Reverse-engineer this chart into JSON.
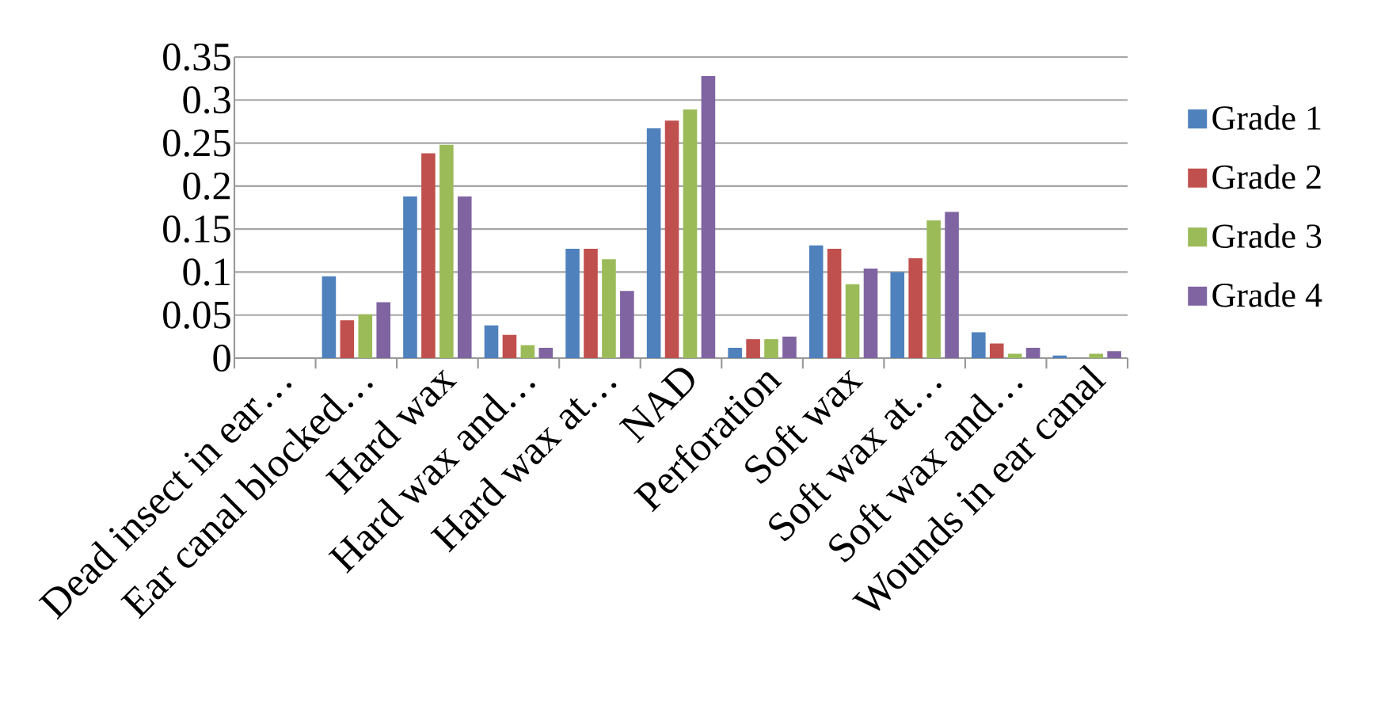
{
  "chart_data": {
    "type": "bar",
    "categories": [
      "Dead insect in ear…",
      "Ear canal blocked…",
      "Hard wax",
      "Hard wax and…",
      "Hard wax at…",
      "NAD",
      "Perforation",
      "Soft wax",
      "Soft wax at…",
      "Soft wax and…",
      "Wounds in ear canal"
    ],
    "series": [
      {
        "name": "Grade 1",
        "color": "#4f81bd",
        "values": [
          0,
          0.095,
          0.188,
          0.038,
          0.127,
          0.267,
          0.012,
          0.131,
          0.1,
          0.03,
          0.003
        ]
      },
      {
        "name": "Grade 2",
        "color": "#c0504d",
        "values": [
          0,
          0.044,
          0.238,
          0.027,
          0.127,
          0.276,
          0.022,
          0.127,
          0.116,
          0.017,
          0
        ]
      },
      {
        "name": "Grade 3",
        "color": "#9bbb59",
        "values": [
          0,
          0.051,
          0.248,
          0.015,
          0.115,
          0.289,
          0.022,
          0.086,
          0.16,
          0.005,
          0.005
        ]
      },
      {
        "name": "Grade 4",
        "color": "#8064a2",
        "values": [
          0,
          0.065,
          0.188,
          0.012,
          0.078,
          0.328,
          0.025,
          0.104,
          0.17,
          0.012,
          0.008
        ]
      }
    ],
    "ylim": [
      0,
      0.35
    ],
    "yticks": [
      0,
      0.05,
      0.1,
      0.15,
      0.2,
      0.25,
      0.3,
      0.35
    ],
    "grid": "y",
    "legend": "right"
  }
}
